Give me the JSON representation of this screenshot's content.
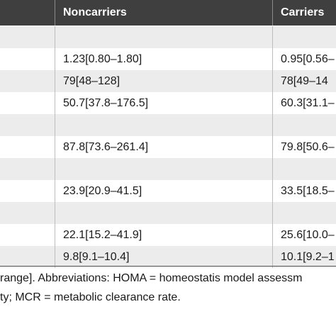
{
  "header": {
    "col_noncarriers": "Noncarriers",
    "col_carriers": "Carriers"
  },
  "rows": [
    {
      "noncarriers": "",
      "carriers": ""
    },
    {
      "noncarriers": "1.23[0.80–1.80]",
      "carriers": "0.95[0.56–"
    },
    {
      "noncarriers": "79[48–128]",
      "carriers": "78[49–14"
    },
    {
      "noncarriers": "50.7[37.8–176.5]",
      "carriers": "60.3[31.1–"
    },
    {
      "noncarriers": "",
      "carriers": ""
    },
    {
      "noncarriers": "87.8[73.6–261.4]",
      "carriers": "79.8[50.6–"
    },
    {
      "noncarriers": "",
      "carriers": ""
    },
    {
      "noncarriers": "23.9[20.9–41.5]",
      "carriers": "33.5[18.5–"
    },
    {
      "noncarriers": "",
      "carriers": ""
    },
    {
      "noncarriers": "22.1[15.2–41.9]",
      "carriers": "25.6[10.0–"
    },
    {
      "noncarriers": "9.8[9.1–10.4]",
      "carriers": "10.1[9.2–1"
    }
  ],
  "footnote": {
    "line1": "range]. Abbreviations: HOMA = homeostatis model assessm",
    "line2": "ty; MCR = metabolic clearance rate."
  }
}
